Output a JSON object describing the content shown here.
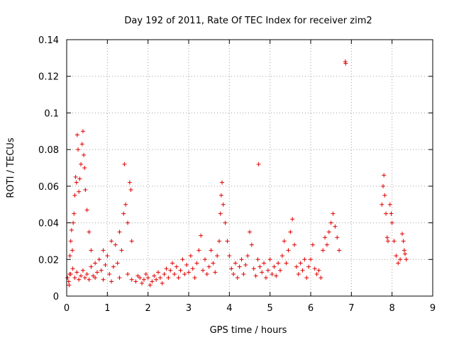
{
  "chart_data": {
    "type": "scatter",
    "title": "Day 192 of 2011, Rate Of TEC Index for receiver zim2",
    "xlabel": "GPS time / hours",
    "ylabel": "ROTI / TECUs",
    "xlim": [
      0,
      9
    ],
    "ylim": [
      0,
      0.14
    ],
    "xticks": [
      0,
      1,
      2,
      3,
      4,
      5,
      6,
      7,
      8,
      9
    ],
    "yticks": [
      0,
      0.02,
      0.04,
      0.06,
      0.08,
      0.1,
      0.12,
      0.14
    ],
    "xtick_labels": [
      "0",
      "1",
      "2",
      "3",
      "4",
      "5",
      "6",
      "7",
      "8",
      "9"
    ],
    "ytick_labels": [
      "0",
      "0.02",
      "0.04",
      "0.06",
      "0.08",
      "0.1",
      "0.12",
      "0.14"
    ],
    "grid": true,
    "marker": "+",
    "color": "#e00000",
    "series": [
      {
        "name": "ROTI",
        "points": [
          [
            0.02,
            0.01
          ],
          [
            0.05,
            0.008
          ],
          [
            0.07,
            0.012
          ],
          [
            0.08,
            0.022
          ],
          [
            0.1,
            0.03
          ],
          [
            0.12,
            0.036
          ],
          [
            0.14,
            0.025
          ],
          [
            0.16,
            0.04
          ],
          [
            0.18,
            0.045
          ],
          [
            0.2,
            0.055
          ],
          [
            0.22,
            0.065
          ],
          [
            0.24,
            0.062
          ],
          [
            0.26,
            0.088
          ],
          [
            0.28,
            0.08
          ],
          [
            0.3,
            0.057
          ],
          [
            0.32,
            0.064
          ],
          [
            0.35,
            0.072
          ],
          [
            0.38,
            0.083
          ],
          [
            0.4,
            0.09
          ],
          [
            0.42,
            0.077
          ],
          [
            0.44,
            0.07
          ],
          [
            0.46,
            0.058
          ],
          [
            0.5,
            0.047
          ],
          [
            0.55,
            0.035
          ],
          [
            0.6,
            0.025
          ],
          [
            0.06,
            0.006
          ],
          [
            0.1,
            0.012
          ],
          [
            0.15,
            0.015
          ],
          [
            0.2,
            0.01
          ],
          [
            0.25,
            0.013
          ],
          [
            0.3,
            0.009
          ],
          [
            0.35,
            0.011
          ],
          [
            0.4,
            0.014
          ],
          [
            0.45,
            0.01
          ],
          [
            0.5,
            0.012
          ],
          [
            0.55,
            0.009
          ],
          [
            0.6,
            0.016
          ],
          [
            0.65,
            0.011
          ],
          [
            0.7,
            0.018
          ],
          [
            0.75,
            0.013
          ],
          [
            0.8,
            0.02
          ],
          [
            0.85,
            0.014
          ],
          [
            0.9,
            0.025
          ],
          [
            0.95,
            0.017
          ],
          [
            1.0,
            0.022
          ],
          [
            1.05,
            0.012
          ],
          [
            1.1,
            0.03
          ],
          [
            1.15,
            0.016
          ],
          [
            1.2,
            0.028
          ],
          [
            1.25,
            0.018
          ],
          [
            1.3,
            0.035
          ],
          [
            1.35,
            0.025
          ],
          [
            1.4,
            0.045
          ],
          [
            1.42,
            0.072
          ],
          [
            1.45,
            0.05
          ],
          [
            1.5,
            0.04
          ],
          [
            1.55,
            0.062
          ],
          [
            1.58,
            0.058
          ],
          [
            1.6,
            0.03
          ],
          [
            1.3,
            0.01
          ],
          [
            1.1,
            0.008
          ],
          [
            0.9,
            0.009
          ],
          [
            0.7,
            0.01
          ],
          [
            1.5,
            0.012
          ],
          [
            1.6,
            0.009
          ],
          [
            1.7,
            0.008
          ],
          [
            1.75,
            0.011
          ],
          [
            1.8,
            0.01
          ],
          [
            1.85,
            0.007
          ],
          [
            1.9,
            0.009
          ],
          [
            1.95,
            0.012
          ],
          [
            2.0,
            0.01
          ],
          [
            2.05,
            0.006
          ],
          [
            2.1,
            0.008
          ],
          [
            2.15,
            0.011
          ],
          [
            2.2,
            0.009
          ],
          [
            2.25,
            0.013
          ],
          [
            2.3,
            0.01
          ],
          [
            2.35,
            0.007
          ],
          [
            2.4,
            0.012
          ],
          [
            2.45,
            0.015
          ],
          [
            2.5,
            0.01
          ],
          [
            2.55,
            0.014
          ],
          [
            2.6,
            0.018
          ],
          [
            2.65,
            0.012
          ],
          [
            2.7,
            0.016
          ],
          [
            2.75,
            0.01
          ],
          [
            2.8,
            0.014
          ],
          [
            2.85,
            0.02
          ],
          [
            2.9,
            0.012
          ],
          [
            2.95,
            0.017
          ],
          [
            3.0,
            0.013
          ],
          [
            3.05,
            0.022
          ],
          [
            3.1,
            0.015
          ],
          [
            3.15,
            0.01
          ],
          [
            3.2,
            0.018
          ],
          [
            3.25,
            0.025
          ],
          [
            3.3,
            0.033
          ],
          [
            3.35,
            0.014
          ],
          [
            3.4,
            0.02
          ],
          [
            3.45,
            0.012
          ],
          [
            3.5,
            0.016
          ],
          [
            3.55,
            0.025
          ],
          [
            3.6,
            0.018
          ],
          [
            3.65,
            0.013
          ],
          [
            3.7,
            0.022
          ],
          [
            3.75,
            0.03
          ],
          [
            3.78,
            0.045
          ],
          [
            3.8,
            0.055
          ],
          [
            3.82,
            0.062
          ],
          [
            3.85,
            0.05
          ],
          [
            3.9,
            0.04
          ],
          [
            3.95,
            0.03
          ],
          [
            4.0,
            0.022
          ],
          [
            4.05,
            0.015
          ],
          [
            4.1,
            0.012
          ],
          [
            4.15,
            0.018
          ],
          [
            4.2,
            0.01
          ],
          [
            4.25,
            0.016
          ],
          [
            4.3,
            0.02
          ],
          [
            4.35,
            0.012
          ],
          [
            4.4,
            0.017
          ],
          [
            4.45,
            0.022
          ],
          [
            4.5,
            0.035
          ],
          [
            4.55,
            0.028
          ],
          [
            4.6,
            0.015
          ],
          [
            4.65,
            0.011
          ],
          [
            4.7,
            0.02
          ],
          [
            4.72,
            0.072
          ],
          [
            4.75,
            0.016
          ],
          [
            4.8,
            0.013
          ],
          [
            4.85,
            0.018
          ],
          [
            4.9,
            0.01
          ],
          [
            4.95,
            0.014
          ],
          [
            5.0,
            0.02
          ],
          [
            5.05,
            0.012
          ],
          [
            5.1,
            0.016
          ],
          [
            5.15,
            0.011
          ],
          [
            5.2,
            0.018
          ],
          [
            5.25,
            0.014
          ],
          [
            5.3,
            0.022
          ],
          [
            5.35,
            0.03
          ],
          [
            5.4,
            0.018
          ],
          [
            5.45,
            0.025
          ],
          [
            5.5,
            0.035
          ],
          [
            5.55,
            0.042
          ],
          [
            5.6,
            0.028
          ],
          [
            5.65,
            0.016
          ],
          [
            5.7,
            0.012
          ],
          [
            5.75,
            0.018
          ],
          [
            5.8,
            0.014
          ],
          [
            5.85,
            0.02
          ],
          [
            5.9,
            0.01
          ],
          [
            5.95,
            0.016
          ],
          [
            6.0,
            0.02
          ],
          [
            6.05,
            0.028
          ],
          [
            6.1,
            0.015
          ],
          [
            6.15,
            0.012
          ],
          [
            6.2,
            0.014
          ],
          [
            6.25,
            0.01
          ],
          [
            6.3,
            0.025
          ],
          [
            6.35,
            0.032
          ],
          [
            6.4,
            0.028
          ],
          [
            6.45,
            0.035
          ],
          [
            6.5,
            0.04
          ],
          [
            6.55,
            0.045
          ],
          [
            6.6,
            0.038
          ],
          [
            6.65,
            0.032
          ],
          [
            6.7,
            0.025
          ],
          [
            6.85,
            0.128
          ],
          [
            6.86,
            0.127
          ],
          [
            7.75,
            0.05
          ],
          [
            7.78,
            0.06
          ],
          [
            7.8,
            0.066
          ],
          [
            7.82,
            0.055
          ],
          [
            7.85,
            0.045
          ],
          [
            7.88,
            0.032
          ],
          [
            7.9,
            0.03
          ],
          [
            7.95,
            0.05
          ],
          [
            7.98,
            0.045
          ],
          [
            8.0,
            0.04
          ],
          [
            8.05,
            0.03
          ],
          [
            8.1,
            0.022
          ],
          [
            8.15,
            0.018
          ],
          [
            8.2,
            0.02
          ],
          [
            8.25,
            0.034
          ],
          [
            8.28,
            0.03
          ],
          [
            8.3,
            0.025
          ],
          [
            8.32,
            0.023
          ],
          [
            8.35,
            0.02
          ]
        ]
      }
    ]
  }
}
